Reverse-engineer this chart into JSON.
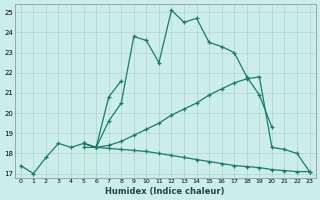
{
  "xlabel": "Humidex (Indice chaleur)",
  "background_color": "#cceee8",
  "grid_color": "#b0d4ce",
  "line_color": "#1a7a6e",
  "xlim": [
    -0.5,
    23.5
  ],
  "ylim": [
    16.8,
    25.4
  ],
  "yticks": [
    17,
    18,
    19,
    20,
    21,
    22,
    23,
    24,
    25
  ],
  "xticks": [
    0,
    1,
    2,
    3,
    4,
    5,
    6,
    7,
    8,
    9,
    10,
    11,
    12,
    13,
    14,
    15,
    16,
    17,
    18,
    19,
    20,
    21,
    22,
    23
  ],
  "lines": [
    {
      "x": [
        0,
        1,
        2,
        3,
        4,
        5,
        6,
        7,
        8,
        9,
        10,
        11,
        12,
        13,
        14,
        15,
        16,
        17,
        18,
        19,
        20
      ],
      "y": [
        17.4,
        17.0,
        17.8,
        18.5,
        18.3,
        18.5,
        18.3,
        19.6,
        20.5,
        23.8,
        23.6,
        22.5,
        25.1,
        24.5,
        24.7,
        23.5,
        23.3,
        23.0,
        21.8,
        20.9,
        19.3
      ]
    },
    {
      "x": [
        5,
        6,
        7,
        8
      ],
      "y": [
        18.5,
        18.3,
        20.8,
        21.6
      ]
    },
    {
      "x": [
        5,
        6,
        7,
        8,
        9,
        10,
        11,
        12,
        13,
        14,
        15,
        16,
        17,
        18,
        19,
        20,
        21,
        22,
        23
      ],
      "y": [
        18.5,
        18.3,
        18.4,
        18.6,
        18.9,
        19.2,
        19.5,
        19.9,
        20.2,
        20.5,
        20.9,
        21.2,
        21.5,
        21.7,
        21.8,
        18.3,
        18.2,
        18.0,
        17.1
      ]
    },
    {
      "x": [
        5,
        6,
        7,
        8,
        9,
        10,
        11,
        12,
        13,
        14,
        15,
        16,
        17,
        18,
        19,
        20,
        21,
        22,
        23
      ],
      "y": [
        18.3,
        18.3,
        18.25,
        18.2,
        18.15,
        18.1,
        18.0,
        17.9,
        17.8,
        17.7,
        17.6,
        17.5,
        17.4,
        17.35,
        17.3,
        17.2,
        17.15,
        17.1,
        17.1
      ]
    }
  ]
}
